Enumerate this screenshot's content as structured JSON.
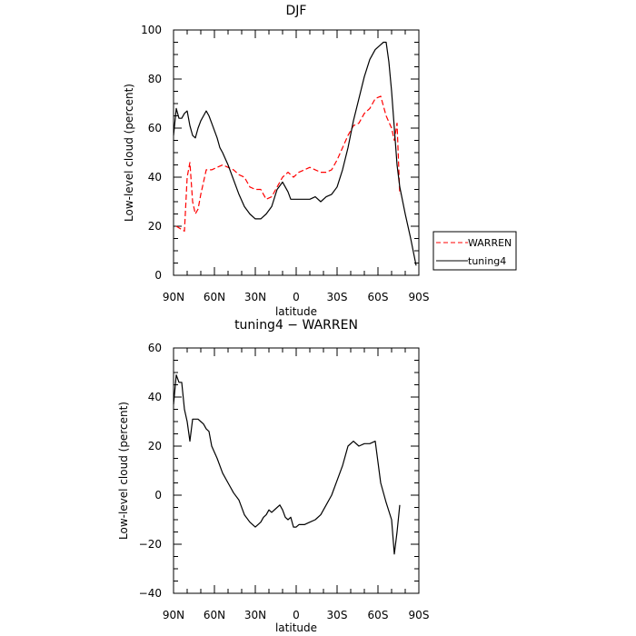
{
  "chart_data": [
    {
      "type": "line",
      "title": "DJF",
      "xlabel": "latitude",
      "ylabel": "Low-level cloud (percent)",
      "xlim": [
        90,
        -90
      ],
      "ylim": [
        0,
        100
      ],
      "x_ticks": [
        90,
        60,
        30,
        0,
        -30,
        -60,
        -90
      ],
      "x_tick_labels": [
        "90N",
        "60N",
        "30N",
        "0",
        "30S",
        "60S",
        "90S"
      ],
      "y_ticks": [
        0,
        20,
        40,
        60,
        80,
        100
      ],
      "y_tick_labels": [
        "0",
        "20",
        "40",
        "60",
        "80",
        "100"
      ],
      "grid": false,
      "legend_position": "right",
      "series": [
        {
          "name": "WARREN",
          "color": "#ff0000",
          "dash": "dashed",
          "x": [
            88,
            85,
            82,
            80,
            78,
            76,
            74,
            72,
            70,
            68,
            66,
            64,
            62,
            58,
            54,
            50,
            46,
            42,
            38,
            34,
            30,
            26,
            22,
            18,
            14,
            10,
            6,
            2,
            0,
            -2,
            -6,
            -10,
            -14,
            -18,
            -22,
            -26,
            -30,
            -34,
            -38,
            -42,
            -46,
            -50,
            -54,
            -58,
            -62,
            -66,
            -70,
            -72,
            -74,
            -76
          ],
          "y": [
            20,
            19,
            18,
            40,
            46,
            30,
            25,
            27,
            33,
            38,
            43,
            43,
            43,
            44,
            45,
            44,
            43,
            41,
            40,
            36,
            35,
            35,
            31,
            32,
            36,
            40,
            42,
            40,
            41,
            42,
            43,
            44,
            43,
            42,
            42,
            43,
            47,
            52,
            57,
            61,
            62,
            66,
            68,
            72,
            73,
            65,
            60,
            55,
            62,
            33
          ]
        },
        {
          "name": "tuning4",
          "color": "#000000",
          "dash": "solid",
          "x": [
            90,
            88,
            86,
            84,
            82,
            80,
            78,
            76,
            74,
            72,
            70,
            68,
            66,
            64,
            62,
            58,
            56,
            54,
            50,
            46,
            42,
            38,
            34,
            30,
            28,
            26,
            24,
            22,
            18,
            14,
            10,
            6,
            4,
            2,
            0,
            -2,
            -6,
            -10,
            -14,
            -18,
            -22,
            -26,
            -30,
            -34,
            -38,
            -42,
            -46,
            -50,
            -54,
            -58,
            -62,
            -64,
            -66,
            -68,
            -70,
            -72,
            -74,
            -76,
            -80,
            -84,
            -88
          ],
          "y": [
            57,
            68,
            64,
            64,
            66,
            67,
            61,
            57,
            56,
            60,
            63,
            65,
            67,
            65,
            62,
            56,
            52,
            50,
            45,
            39,
            33,
            28,
            25,
            23,
            23,
            23,
            24,
            25,
            28,
            35,
            38,
            34,
            31,
            31,
            31,
            31,
            31,
            31,
            32,
            30,
            32,
            33,
            36,
            43,
            52,
            63,
            72,
            81,
            88,
            92,
            94,
            95,
            95,
            87,
            75,
            60,
            45,
            36,
            25,
            15,
            4
          ]
        }
      ]
    },
    {
      "type": "line",
      "title": "tuning4 − WARREN",
      "xlabel": "latitude",
      "ylabel": "Low-level cloud (percent)",
      "xlim": [
        90,
        -90
      ],
      "ylim": [
        -40,
        60
      ],
      "x_ticks": [
        90,
        60,
        30,
        0,
        -30,
        -60,
        -90
      ],
      "x_tick_labels": [
        "90N",
        "60N",
        "30N",
        "0",
        "30S",
        "60S",
        "90S"
      ],
      "y_ticks": [
        -40,
        -20,
        0,
        20,
        40,
        60
      ],
      "y_tick_labels": [
        "−40",
        "−20",
        "0",
        "20",
        "40",
        "60"
      ],
      "grid": false,
      "series": [
        {
          "color": "#000000",
          "dash": "solid",
          "x": [
            90,
            88,
            86,
            84,
            82,
            80,
            78,
            76,
            74,
            72,
            70,
            68,
            66,
            64,
            62,
            58,
            54,
            50,
            46,
            42,
            38,
            34,
            30,
            26,
            24,
            22,
            20,
            18,
            14,
            12,
            10,
            8,
            6,
            4,
            2,
            0,
            -2,
            -6,
            -10,
            -14,
            -18,
            -22,
            -26,
            -30,
            -34,
            -38,
            -42,
            -46,
            -50,
            -54,
            -58,
            -62,
            -66,
            -70,
            -72,
            -74,
            -76
          ],
          "y": [
            37,
            49,
            46,
            46,
            35,
            30,
            22,
            31,
            31,
            31,
            30,
            29,
            27,
            26,
            20,
            15,
            9,
            5,
            1,
            -2,
            -8,
            -11,
            -13,
            -11,
            -9,
            -8,
            -6,
            -7,
            -5,
            -4,
            -6,
            -9,
            -10,
            -9,
            -13,
            -13,
            -12,
            -12,
            -11,
            -10,
            -8,
            -4,
            0,
            6,
            12,
            20,
            22,
            20,
            21,
            21,
            22,
            5,
            -3,
            -10,
            -24,
            -15,
            -4
          ]
        }
      ]
    }
  ]
}
